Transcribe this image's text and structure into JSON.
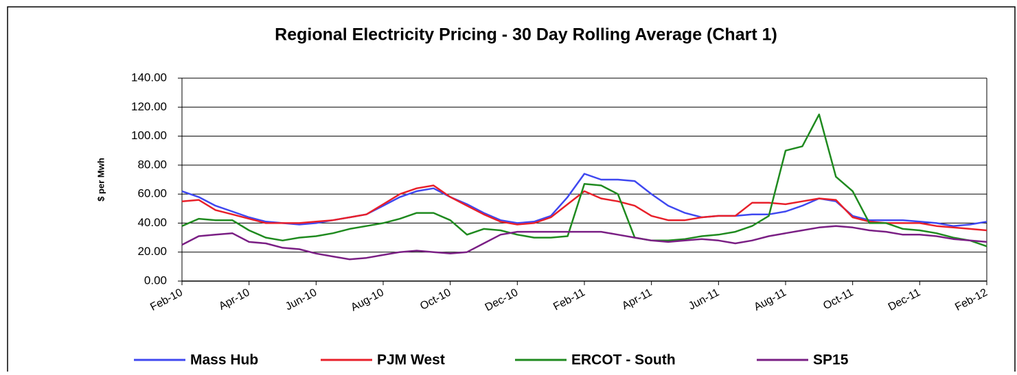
{
  "chart_data": {
    "type": "line",
    "title": "Regional Electricity Pricing - 30 Day Rolling Average (Chart 1)",
    "y_label": "$ per Mwh",
    "categories": [
      "Feb-10",
      null,
      null,
      null,
      "Apr-10",
      null,
      null,
      null,
      "Jun-10",
      null,
      null,
      null,
      "Aug-10",
      null,
      null,
      null,
      "Oct-10",
      null,
      null,
      null,
      "Dec-10",
      null,
      null,
      null,
      "Feb-11",
      null,
      null,
      null,
      "Apr-11",
      null,
      null,
      null,
      "Jun-11",
      null,
      null,
      null,
      "Aug-11",
      null,
      null,
      null,
      "Oct-11",
      null,
      null,
      null,
      "Dec-11",
      null,
      null,
      null,
      "Feb-12"
    ],
    "series": [
      {
        "name": "Mass Hub",
        "color": "#3f48f0",
        "values": [
          62,
          58,
          52,
          48,
          44,
          41,
          40,
          39,
          40,
          42,
          44,
          46,
          52,
          58,
          62,
          64,
          58,
          53,
          47,
          42,
          40,
          41,
          45,
          58,
          74,
          70,
          70,
          69,
          60,
          52,
          47,
          44,
          45,
          45,
          46,
          46,
          48,
          52,
          57,
          55,
          45,
          42,
          42,
          42,
          41,
          40,
          38,
          39,
          41
        ]
      },
      {
        "name": "PJM West",
        "color": "#e8202a",
        "values": [
          55,
          56,
          49,
          46,
          43,
          40,
          40,
          40,
          41,
          42,
          44,
          46,
          53,
          60,
          64,
          66,
          58,
          52,
          46,
          41,
          39,
          40,
          44,
          53,
          62,
          57,
          55,
          52,
          45,
          42,
          42,
          44,
          45,
          45,
          54,
          54,
          53,
          55,
          57,
          56,
          44,
          41,
          40,
          40,
          40,
          38,
          37,
          36,
          35
        ]
      },
      {
        "name": "ERCOT - South",
        "color": "#1f8a1f",
        "values": [
          38,
          43,
          42,
          42,
          35,
          30,
          28,
          30,
          31,
          33,
          36,
          38,
          40,
          43,
          47,
          47,
          42,
          32,
          36,
          35,
          32,
          30,
          30,
          31,
          67,
          66,
          60,
          30,
          28,
          28,
          29,
          31,
          32,
          34,
          38,
          45,
          90,
          93,
          115,
          72,
          62,
          40,
          40,
          36,
          35,
          33,
          30,
          28,
          24
        ]
      },
      {
        "name": "SP15",
        "color": "#7a1f84",
        "values": [
          25,
          31,
          32,
          33,
          27,
          26,
          23,
          22,
          19,
          17,
          15,
          16,
          18,
          20,
          21,
          20,
          19,
          20,
          26,
          32,
          34,
          34,
          34,
          34,
          34,
          34,
          32,
          30,
          28,
          27,
          28,
          29,
          28,
          26,
          28,
          31,
          33,
          35,
          37,
          38,
          37,
          35,
          34,
          32,
          32,
          31,
          29,
          28,
          27
        ]
      }
    ],
    "ylim": [
      0,
      140
    ],
    "yticks": [
      {
        "value": 0,
        "label": "0.00"
      },
      {
        "value": 20,
        "label": "20.00"
      },
      {
        "value": 40,
        "label": "40.00"
      },
      {
        "value": 60,
        "label": "60.00"
      },
      {
        "value": 80,
        "label": "80.00"
      },
      {
        "value": 100,
        "label": "100.00"
      },
      {
        "value": 120,
        "label": "120.00"
      },
      {
        "value": 140,
        "label": "140.00"
      }
    ],
    "grid": true
  }
}
